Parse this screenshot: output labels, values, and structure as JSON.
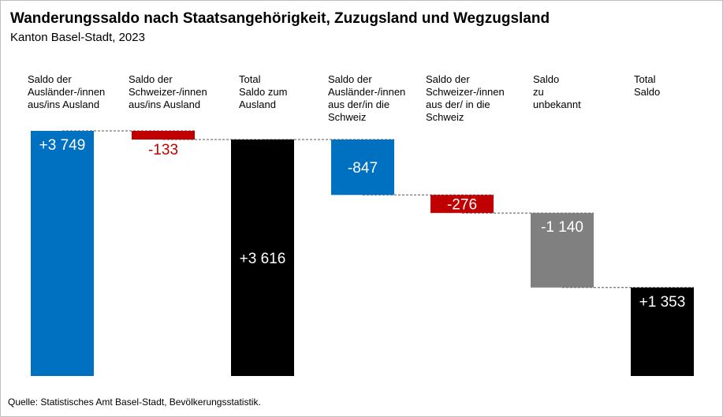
{
  "title": "Wanderungssaldo nach Staatsangehörigkeit, Zuzugsland und Wegzugsland",
  "subtitle": "Kanton Basel-Stadt, 2023",
  "source": "Quelle: Statistisches Amt Basel-Stadt, Bevölkerungsstatistik.",
  "chart_data": {
    "type": "waterfall",
    "categories": [
      [
        "Saldo der",
        "Ausländer-/innen",
        "aus/ins Ausland"
      ],
      [
        "Saldo der",
        "Schweizer-/innen",
        "aus/ins Ausland"
      ],
      [
        "Total",
        "Saldo zum",
        "Ausland"
      ],
      [
        "Saldo der",
        "Ausländer-/innen",
        "aus der/in die",
        "Schweiz"
      ],
      [
        "Saldo der",
        "Schweizer-/innen",
        "aus der/ in die",
        "Schweiz"
      ],
      [
        "Saldo",
        "zu",
        "unbekannt"
      ],
      [
        "Total",
        "Saldo"
      ]
    ],
    "values": [
      3749,
      -133,
      3616,
      -847,
      -276,
      -1140,
      1353
    ],
    "is_total": [
      false,
      false,
      true,
      false,
      false,
      false,
      true
    ],
    "data_labels": [
      "+3 749",
      "-133",
      "+3 616",
      "-847",
      "-276",
      "-1 140",
      "+1 353"
    ],
    "colors": [
      "#0070c0",
      "#c00000",
      "#000000",
      "#0070c0",
      "#c00000",
      "#808080",
      "#000000"
    ],
    "label_colors": [
      "#ffffff",
      "#c00000",
      "#ffffff",
      "#ffffff",
      "#ffffff",
      "#ffffff",
      "#ffffff"
    ],
    "connectors": "dashed",
    "grid": false,
    "legend": "none"
  }
}
